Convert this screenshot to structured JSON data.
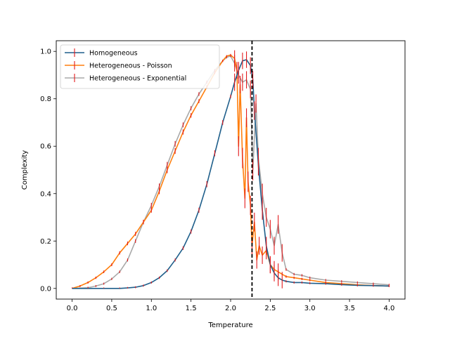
{
  "chart_data": {
    "type": "line",
    "title": "",
    "xlabel": "Temperature",
    "ylabel": "Complexity",
    "xlim": [
      -0.2,
      4.2
    ],
    "ylim": [
      -0.045,
      1.045
    ],
    "xticks": [
      0.0,
      0.5,
      1.0,
      1.5,
      2.0,
      2.5,
      3.0,
      3.5,
      4.0
    ],
    "xtick_labels": [
      "0.0",
      "0.5",
      "1.0",
      "1.5",
      "2.0",
      "2.5",
      "3.0",
      "3.5",
      "4.0"
    ],
    "yticks": [
      0.0,
      0.2,
      0.4,
      0.6,
      0.8,
      1.0
    ],
    "ytick_labels": [
      "0.0",
      "0.2",
      "0.4",
      "0.6",
      "0.8",
      "1.0"
    ],
    "grid": false,
    "legend_position": "top-left",
    "errorbar_color": "#e31a1c",
    "vline": {
      "x": 2.27,
      "color": "#000000",
      "style": "dashed"
    },
    "series": [
      {
        "name": "Homogeneous",
        "color": "#1f5f8b",
        "x": [
          0.0,
          0.2,
          0.4,
          0.6,
          0.7,
          0.8,
          0.9,
          1.0,
          1.1,
          1.2,
          1.3,
          1.4,
          1.5,
          1.6,
          1.7,
          1.8,
          1.9,
          2.0,
          2.05,
          2.1,
          2.15,
          2.2,
          2.25,
          2.28,
          2.3,
          2.35,
          2.4,
          2.45,
          2.5,
          2.55,
          2.6,
          2.65,
          2.7,
          2.8,
          2.9,
          3.0,
          3.2,
          3.4,
          3.6,
          3.8,
          4.0
        ],
        "y": [
          0.0,
          0.0,
          0.0,
          0.0,
          0.002,
          0.005,
          0.012,
          0.025,
          0.045,
          0.075,
          0.12,
          0.17,
          0.24,
          0.33,
          0.44,
          0.57,
          0.7,
          0.81,
          0.87,
          0.92,
          0.96,
          0.965,
          0.94,
          0.88,
          0.75,
          0.52,
          0.33,
          0.18,
          0.1,
          0.065,
          0.045,
          0.035,
          0.03,
          0.025,
          0.025,
          0.022,
          0.02,
          0.016,
          0.013,
          0.012,
          0.01
        ]
      },
      {
        "name": "Heterogeneous - Poisson",
        "color": "#ff7f0e",
        "x": [
          0.0,
          0.1,
          0.2,
          0.3,
          0.4,
          0.5,
          0.6,
          0.7,
          0.8,
          0.9,
          1.0,
          1.1,
          1.2,
          1.3,
          1.4,
          1.5,
          1.6,
          1.7,
          1.8,
          1.9,
          1.95,
          2.0,
          2.05,
          2.08,
          2.1,
          2.12,
          2.15,
          2.18,
          2.2,
          2.22,
          2.25,
          2.27,
          2.3,
          2.33,
          2.36,
          2.4,
          2.45,
          2.5,
          2.55,
          2.6,
          2.7,
          2.8,
          2.9,
          3.0,
          3.2,
          3.4,
          3.6,
          3.8,
          4.0
        ],
        "y": [
          0.0,
          0.01,
          0.025,
          0.045,
          0.07,
          0.1,
          0.15,
          0.19,
          0.23,
          0.28,
          0.33,
          0.41,
          0.5,
          0.58,
          0.66,
          0.73,
          0.79,
          0.85,
          0.91,
          0.96,
          0.98,
          0.985,
          0.97,
          0.92,
          0.6,
          0.86,
          0.55,
          0.38,
          0.72,
          0.45,
          0.35,
          0.18,
          0.28,
          0.12,
          0.18,
          0.14,
          0.16,
          0.1,
          0.08,
          0.07,
          0.05,
          0.045,
          0.04,
          0.035,
          0.025,
          0.02,
          0.015,
          0.012,
          0.01
        ]
      },
      {
        "name": "Heterogeneous - Exponential",
        "color": "#a9a9a9",
        "x": [
          0.0,
          0.2,
          0.3,
          0.4,
          0.5,
          0.6,
          0.7,
          0.8,
          0.9,
          1.0,
          1.1,
          1.2,
          1.3,
          1.4,
          1.5,
          1.6,
          1.7,
          1.8,
          1.9,
          1.95,
          2.0,
          2.05,
          2.1,
          2.15,
          2.2,
          2.25,
          2.28,
          2.32,
          2.35,
          2.4,
          2.45,
          2.5,
          2.55,
          2.6,
          2.65,
          2.7,
          2.8,
          2.9,
          3.0,
          3.2,
          3.4,
          3.6,
          3.8,
          4.0
        ],
        "y": [
          0.0,
          0.003,
          0.01,
          0.02,
          0.04,
          0.07,
          0.12,
          0.2,
          0.28,
          0.35,
          0.43,
          0.52,
          0.61,
          0.69,
          0.76,
          0.82,
          0.87,
          0.92,
          0.96,
          0.975,
          0.98,
          0.95,
          0.9,
          0.87,
          0.88,
          0.84,
          0.5,
          0.78,
          0.55,
          0.4,
          0.3,
          0.25,
          0.18,
          0.27,
          0.15,
          0.08,
          0.06,
          0.055,
          0.045,
          0.035,
          0.03,
          0.025,
          0.02,
          0.015
        ]
      }
    ]
  }
}
